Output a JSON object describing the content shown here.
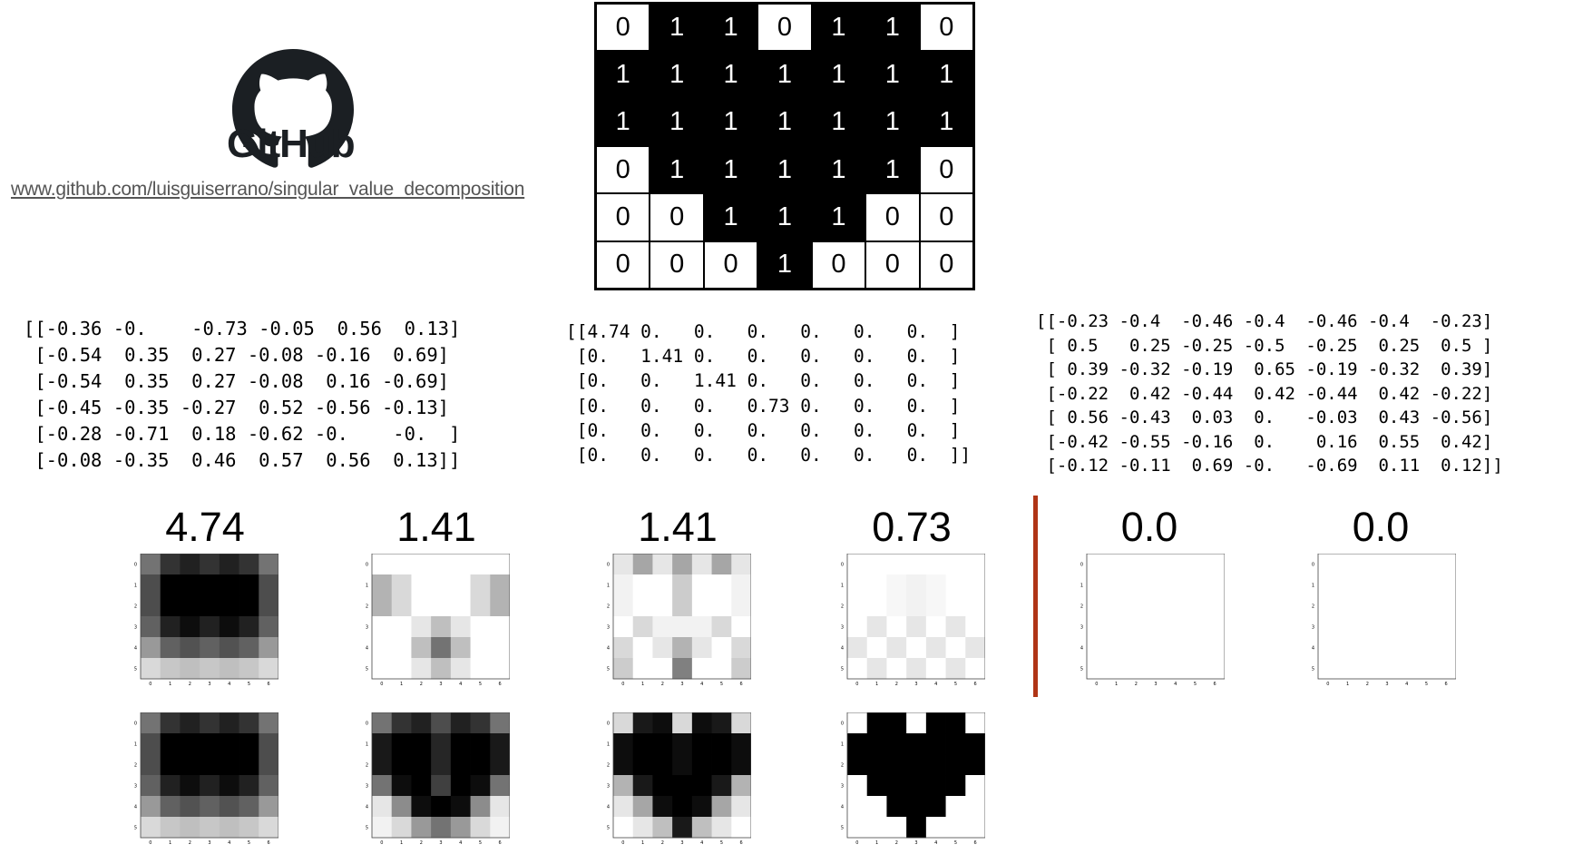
{
  "header": {
    "brand": "GitHub",
    "repo_url": "www.github.com/luisguiserrano/singular_value_decomposition",
    "logo_icon": "github-octocat-icon"
  },
  "heart_matrix": [
    [
      0,
      1,
      1,
      0,
      1,
      1,
      0
    ],
    [
      1,
      1,
      1,
      1,
      1,
      1,
      1
    ],
    [
      1,
      1,
      1,
      1,
      1,
      1,
      1
    ],
    [
      0,
      1,
      1,
      1,
      1,
      1,
      0
    ],
    [
      0,
      0,
      1,
      1,
      1,
      0,
      0
    ],
    [
      0,
      0,
      0,
      1,
      0,
      0,
      0
    ]
  ],
  "matrices": {
    "u": "[[-0.36 -0.    -0.73 -0.05  0.56  0.13]\n [-0.54  0.35  0.27 -0.08 -0.16  0.69]\n [-0.54  0.35  0.27 -0.08  0.16 -0.69]\n [-0.45 -0.35 -0.27  0.52 -0.56 -0.13]\n [-0.28 -0.71  0.18 -0.62 -0.    -0.  ]\n [-0.08 -0.35  0.46  0.57  0.56  0.13]]",
    "s": "[[4.74 0.   0.   0.   0.   0.   0.  ]\n [0.   1.41 0.   0.   0.   0.   0.  ]\n [0.   0.   1.41 0.   0.   0.   0.  ]\n [0.   0.   0.   0.73 0.   0.   0.  ]\n [0.   0.   0.   0.   0.   0.   0.  ]\n [0.   0.   0.   0.   0.   0.   0.  ]]",
    "v": "[[-0.23 -0.4  -0.46 -0.4  -0.46 -0.4  -0.23]\n [ 0.5   0.25 -0.25 -0.5  -0.25  0.25  0.5 ]\n [ 0.39 -0.32 -0.19  0.65 -0.19 -0.32  0.39]\n [-0.22  0.42 -0.44  0.42 -0.44  0.42 -0.22]\n [ 0.56 -0.43  0.03  0.   -0.03  0.43 -0.56]\n [-0.42 -0.55 -0.16  0.    0.16  0.55  0.42]\n [-0.12 -0.11  0.69 -0.   -0.69  0.11  0.12]]"
  },
  "singular_values": [
    "4.74",
    "1.41",
    "1.41",
    "0.73",
    "0.0",
    "0.0"
  ],
  "x_ticks": [
    "0",
    "1",
    "2",
    "3",
    "4",
    "5",
    "6"
  ],
  "y_ticks": [
    "0",
    "1",
    "2",
    "3",
    "4",
    "5"
  ],
  "component_grids": [
    [
      [
        0.55,
        0.8,
        0.87,
        0.8,
        0.87,
        0.8,
        0.55
      ],
      [
        0.7,
        1,
        1,
        1,
        1,
        1,
        0.7
      ],
      [
        0.7,
        1,
        1,
        1,
        1,
        1,
        0.7
      ],
      [
        0.62,
        0.87,
        0.95,
        0.87,
        0.95,
        0.87,
        0.62
      ],
      [
        0.4,
        0.62,
        0.68,
        0.62,
        0.68,
        0.62,
        0.4
      ],
      [
        0.15,
        0.22,
        0.25,
        0.22,
        0.25,
        0.22,
        0.15
      ]
    ],
    [
      [
        0,
        0,
        0,
        0,
        0,
        0,
        0
      ],
      [
        0.3,
        0.15,
        0,
        0,
        0,
        0.15,
        0.3
      ],
      [
        0.3,
        0.15,
        0,
        0,
        0,
        0.15,
        0.3
      ],
      [
        0,
        0,
        0.1,
        0.25,
        0.1,
        0,
        0
      ],
      [
        0,
        0,
        0.25,
        0.55,
        0.25,
        0,
        0
      ],
      [
        0,
        0,
        0.1,
        0.25,
        0.1,
        0,
        0
      ]
    ],
    [
      [
        0.1,
        0.35,
        0.1,
        0.35,
        0.1,
        0.35,
        0.1
      ],
      [
        0.05,
        0,
        0,
        0.2,
        0,
        0,
        0.05
      ],
      [
        0.05,
        0,
        0,
        0.2,
        0,
        0,
        0.05
      ],
      [
        0,
        0.15,
        0.05,
        0.05,
        0.05,
        0.15,
        0
      ],
      [
        0.15,
        0,
        0.1,
        0.3,
        0.1,
        0,
        0.15
      ],
      [
        0.2,
        0,
        0,
        0.5,
        0,
        0,
        0.2
      ]
    ],
    [
      [
        0,
        0,
        0,
        0,
        0,
        0,
        0
      ],
      [
        0,
        0,
        0.03,
        0.05,
        0.03,
        0,
        0
      ],
      [
        0,
        0,
        0.03,
        0.05,
        0.03,
        0,
        0
      ],
      [
        0,
        0.1,
        0,
        0.1,
        0,
        0.1,
        0
      ],
      [
        0.1,
        0,
        0.1,
        0,
        0.1,
        0,
        0.1
      ],
      [
        0,
        0.1,
        0,
        0.1,
        0,
        0.1,
        0
      ]
    ],
    [
      [
        0,
        0,
        0,
        0,
        0,
        0,
        0
      ],
      [
        0,
        0,
        0,
        0,
        0,
        0,
        0
      ],
      [
        0,
        0,
        0,
        0,
        0,
        0,
        0
      ],
      [
        0,
        0,
        0,
        0,
        0,
        0,
        0
      ],
      [
        0,
        0,
        0,
        0,
        0,
        0,
        0
      ],
      [
        0,
        0,
        0,
        0,
        0,
        0,
        0
      ]
    ],
    [
      [
        0,
        0,
        0,
        0,
        0,
        0,
        0
      ],
      [
        0,
        0,
        0,
        0,
        0,
        0,
        0
      ],
      [
        0,
        0,
        0,
        0,
        0,
        0,
        0
      ],
      [
        0,
        0,
        0,
        0,
        0,
        0,
        0
      ],
      [
        0,
        0,
        0,
        0,
        0,
        0,
        0
      ],
      [
        0,
        0,
        0,
        0,
        0,
        0,
        0
      ]
    ]
  ],
  "cumulative_grids": [
    [
      [
        0.55,
        0.8,
        0.87,
        0.8,
        0.87,
        0.8,
        0.55
      ],
      [
        0.7,
        1,
        1,
        1,
        1,
        1,
        0.7
      ],
      [
        0.7,
        1,
        1,
        1,
        1,
        1,
        0.7
      ],
      [
        0.62,
        0.87,
        0.95,
        0.87,
        0.95,
        0.87,
        0.62
      ],
      [
        0.4,
        0.62,
        0.68,
        0.62,
        0.68,
        0.62,
        0.4
      ],
      [
        0.15,
        0.22,
        0.25,
        0.22,
        0.25,
        0.22,
        0.15
      ]
    ],
    [
      [
        0.55,
        0.8,
        0.87,
        0.7,
        0.87,
        0.8,
        0.55
      ],
      [
        0.9,
        1,
        1,
        0.85,
        1,
        1,
        0.9
      ],
      [
        0.9,
        1,
        1,
        0.85,
        1,
        1,
        0.9
      ],
      [
        0.55,
        0.95,
        1,
        0.75,
        1,
        0.95,
        0.55
      ],
      [
        0.1,
        0.45,
        0.95,
        1,
        0.95,
        0.45,
        0.1
      ],
      [
        0.05,
        0.15,
        0.4,
        0.55,
        0.4,
        0.15,
        0.05
      ]
    ],
    [
      [
        0.15,
        0.9,
        0.95,
        0.15,
        0.95,
        0.9,
        0.15
      ],
      [
        0.95,
        1,
        1,
        0.95,
        1,
        1,
        0.95
      ],
      [
        0.95,
        1,
        1,
        0.95,
        1,
        1,
        0.95
      ],
      [
        0.3,
        0.9,
        1,
        1,
        1,
        0.9,
        0.3
      ],
      [
        0.1,
        0.35,
        0.95,
        1,
        0.95,
        0.35,
        0.1
      ],
      [
        0,
        0.1,
        0.25,
        0.9,
        0.25,
        0.1,
        0
      ]
    ],
    [
      [
        0,
        1,
        1,
        0,
        1,
        1,
        0
      ],
      [
        1,
        1,
        1,
        1,
        1,
        1,
        1
      ],
      [
        1,
        1,
        1,
        1,
        1,
        1,
        1
      ],
      [
        0,
        1,
        1,
        1,
        1,
        1,
        0
      ],
      [
        0,
        0,
        1,
        1,
        1,
        0,
        0
      ],
      [
        0,
        0,
        0,
        1,
        0,
        0,
        0
      ]
    ]
  ],
  "colors": {
    "divider": "#b03516",
    "grid_border": "#000000"
  }
}
